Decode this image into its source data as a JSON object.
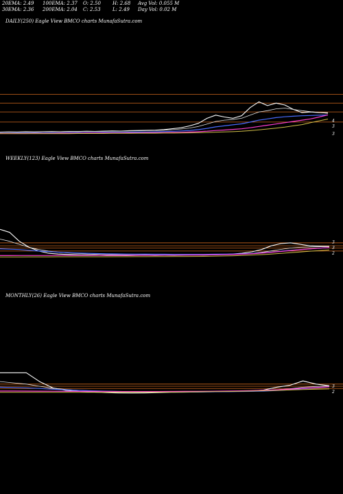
{
  "header": {
    "ema20": "20EMA: 2.49",
    "ema30": "30EMA: 2.36",
    "ema100": "100EMA: 2.37",
    "ema200": "200EMA: 2.04",
    "open": "O: 2.50",
    "close": "C: 2.53",
    "high": "H: 2.68",
    "low": "L: 2.49",
    "avg_vol": "Avg Vol: 0.055 M",
    "day_vol": "Day Vol: 0.02 M"
  },
  "colors": {
    "background": "#000000",
    "price": "#ffffff",
    "ema_short": "#e6e6e6",
    "ema_blue": "#4a6cff",
    "ema_pink": "#ff3fd2",
    "ema_yellow": "#d4c14a",
    "level_line": "#d2691e"
  },
  "chart_data": [
    {
      "type": "line",
      "title": "DAILY(250) Eagle  View  BMCO charts MunafaSutra.com",
      "right_labels": [
        "4",
        "3",
        "3"
      ],
      "series": [
        {
          "values": [
            1.0,
            1.02,
            1.01,
            1.03,
            1.02,
            1.04,
            1.05,
            1.04,
            1.06,
            1.05,
            1.07,
            1.06,
            1.08,
            1.1,
            1.09,
            1.12,
            1.13,
            1.15,
            1.16,
            1.2,
            1.28,
            1.35,
            1.5,
            1.7,
            2.1,
            2.35,
            2.2,
            2.1,
            2.3,
            2.95,
            3.4,
            3.1,
            3.3,
            3.15,
            2.8,
            2.55,
            2.6,
            2.55,
            2.53
          ]
        },
        {
          "values": [
            1.0,
            1.01,
            1.01,
            1.02,
            1.02,
            1.03,
            1.04,
            1.04,
            1.05,
            1.05,
            1.06,
            1.06,
            1.07,
            1.08,
            1.08,
            1.1,
            1.11,
            1.12,
            1.14,
            1.16,
            1.2,
            1.25,
            1.33,
            1.45,
            1.65,
            1.85,
            1.95,
            2.0,
            2.1,
            2.35,
            2.6,
            2.7,
            2.85,
            2.9,
            2.8,
            2.7,
            2.62,
            2.56,
            2.49
          ]
        },
        {
          "values": [
            0.92,
            0.92,
            0.93,
            0.93,
            0.94,
            0.94,
            0.95,
            0.95,
            0.96,
            0.96,
            0.97,
            0.97,
            0.98,
            0.99,
            0.99,
            1.0,
            1.01,
            1.02,
            1.03,
            1.05,
            1.07,
            1.1,
            1.14,
            1.2,
            1.3,
            1.42,
            1.5,
            1.58,
            1.66,
            1.8,
            1.95,
            2.05,
            2.15,
            2.22,
            2.26,
            2.3,
            2.32,
            2.34,
            2.36
          ]
        },
        {
          "values": [
            0.9,
            0.9,
            0.9,
            0.9,
            0.91,
            0.91,
            0.91,
            0.92,
            0.92,
            0.92,
            0.93,
            0.93,
            0.93,
            0.94,
            0.94,
            0.95,
            0.95,
            0.96,
            0.96,
            0.97,
            0.98,
            0.99,
            1.01,
            1.04,
            1.08,
            1.13,
            1.17,
            1.22,
            1.27,
            1.35,
            1.45,
            1.55,
            1.65,
            1.75,
            1.85,
            1.95,
            2.05,
            2.2,
            2.37
          ]
        },
        {
          "values": [
            0.88,
            0.88,
            0.88,
            0.88,
            0.88,
            0.89,
            0.89,
            0.89,
            0.89,
            0.9,
            0.9,
            0.9,
            0.9,
            0.91,
            0.91,
            0.91,
            0.92,
            0.92,
            0.92,
            0.93,
            0.93,
            0.94,
            0.95,
            0.96,
            0.98,
            1.0,
            1.02,
            1.04,
            1.07,
            1.12,
            1.18,
            1.25,
            1.32,
            1.4,
            1.5,
            1.6,
            1.75,
            1.9,
            2.04
          ]
        }
      ],
      "ylim": [
        0.6,
        4.4
      ],
      "levels": [
        4.0,
        3.3,
        2.6,
        1.8
      ]
    },
    {
      "type": "line",
      "title": "WEEKLY(123) Eagle  View  BMCO charts MunafaSutra.com",
      "right_labels": [
        "3",
        "3",
        "2"
      ],
      "series": [
        {
          "values": [
            4.8,
            4.4,
            3.2,
            2.4,
            1.9,
            1.6,
            1.5,
            1.45,
            1.4,
            1.38,
            1.35,
            1.3,
            1.32,
            1.3,
            1.33,
            1.35,
            1.32,
            1.34,
            1.33,
            1.36,
            1.38,
            1.36,
            1.4,
            1.45,
            1.5,
            1.6,
            1.8,
            2.1,
            2.6,
            2.9,
            3.0,
            2.8,
            2.6,
            2.55,
            2.53
          ]
        },
        {
          "values": [
            3.5,
            3.2,
            2.8,
            2.4,
            2.1,
            1.9,
            1.75,
            1.65,
            1.58,
            1.52,
            1.47,
            1.43,
            1.41,
            1.39,
            1.38,
            1.38,
            1.37,
            1.37,
            1.37,
            1.38,
            1.39,
            1.39,
            1.41,
            1.43,
            1.46,
            1.51,
            1.6,
            1.73,
            1.92,
            2.12,
            2.3,
            2.4,
            2.45,
            2.48,
            2.49
          ]
        },
        {
          "values": [
            2.2,
            2.15,
            2.1,
            2.0,
            1.9,
            1.82,
            1.75,
            1.69,
            1.64,
            1.6,
            1.57,
            1.54,
            1.52,
            1.5,
            1.49,
            1.48,
            1.47,
            1.47,
            1.46,
            1.46,
            1.46,
            1.46,
            1.47,
            1.48,
            1.5,
            1.53,
            1.58,
            1.65,
            1.75,
            1.88,
            2.0,
            2.1,
            2.2,
            2.28,
            2.36
          ]
        },
        {
          "values": [
            1.3,
            1.3,
            1.31,
            1.31,
            1.31,
            1.31,
            1.32,
            1.32,
            1.32,
            1.32,
            1.32,
            1.33,
            1.33,
            1.33,
            1.34,
            1.34,
            1.34,
            1.35,
            1.35,
            1.36,
            1.37,
            1.38,
            1.39,
            1.41,
            1.44,
            1.48,
            1.54,
            1.62,
            1.72,
            1.84,
            1.96,
            2.08,
            2.18,
            2.28,
            2.37
          ]
        },
        {
          "values": [
            1.1,
            1.1,
            1.1,
            1.11,
            1.11,
            1.11,
            1.12,
            1.12,
            1.12,
            1.13,
            1.13,
            1.13,
            1.14,
            1.14,
            1.15,
            1.15,
            1.16,
            1.16,
            1.17,
            1.18,
            1.19,
            1.2,
            1.22,
            1.24,
            1.27,
            1.31,
            1.36,
            1.42,
            1.5,
            1.58,
            1.68,
            1.78,
            1.88,
            1.96,
            2.04
          ]
        }
      ],
      "ylim": [
        0.6,
        5.2
      ],
      "levels": [
        3.0,
        2.6,
        2.3,
        1.9
      ]
    },
    {
      "type": "line",
      "title": "MONTHLY(26) Eagle  View  BMCO charts MunafaSutra.com",
      "right_labels": [
        "3",
        "2"
      ],
      "series": [
        {
          "values": [
            4.6,
            4.6,
            4.6,
            3.2,
            2.2,
            1.8,
            1.65,
            1.55,
            1.45,
            1.4,
            1.38,
            1.4,
            1.45,
            1.5,
            1.52,
            1.55,
            1.6,
            1.62,
            1.65,
            1.7,
            1.85,
            2.3,
            2.6,
            3.3,
            2.8,
            2.53
          ]
        },
        {
          "values": [
            3.2,
            3.0,
            2.8,
            2.45,
            2.15,
            1.95,
            1.8,
            1.7,
            1.62,
            1.56,
            1.52,
            1.5,
            1.5,
            1.51,
            1.52,
            1.54,
            1.56,
            1.59,
            1.62,
            1.66,
            1.73,
            1.88,
            2.05,
            2.3,
            2.42,
            2.49
          ]
        },
        {
          "values": [
            2.3,
            2.25,
            2.2,
            2.1,
            1.98,
            1.88,
            1.8,
            1.73,
            1.68,
            1.63,
            1.6,
            1.58,
            1.56,
            1.56,
            1.56,
            1.57,
            1.58,
            1.59,
            1.61,
            1.64,
            1.69,
            1.78,
            1.9,
            2.08,
            2.22,
            2.36
          ]
        },
        {
          "values": [
            1.7,
            1.7,
            1.69,
            1.68,
            1.67,
            1.66,
            1.65,
            1.64,
            1.63,
            1.62,
            1.62,
            1.62,
            1.62,
            1.63,
            1.64,
            1.65,
            1.67,
            1.69,
            1.72,
            1.76,
            1.82,
            1.9,
            2.0,
            2.14,
            2.26,
            2.37
          ]
        },
        {
          "values": [
            1.5,
            1.5,
            1.5,
            1.5,
            1.5,
            1.5,
            1.5,
            1.5,
            1.5,
            1.51,
            1.51,
            1.52,
            1.53,
            1.54,
            1.56,
            1.58,
            1.6,
            1.62,
            1.65,
            1.69,
            1.74,
            1.8,
            1.86,
            1.93,
            1.99,
            2.04
          ]
        }
      ],
      "ylim": [
        0.6,
        5.5
      ],
      "levels": [
        2.8,
        2.45,
        2.1
      ]
    }
  ]
}
